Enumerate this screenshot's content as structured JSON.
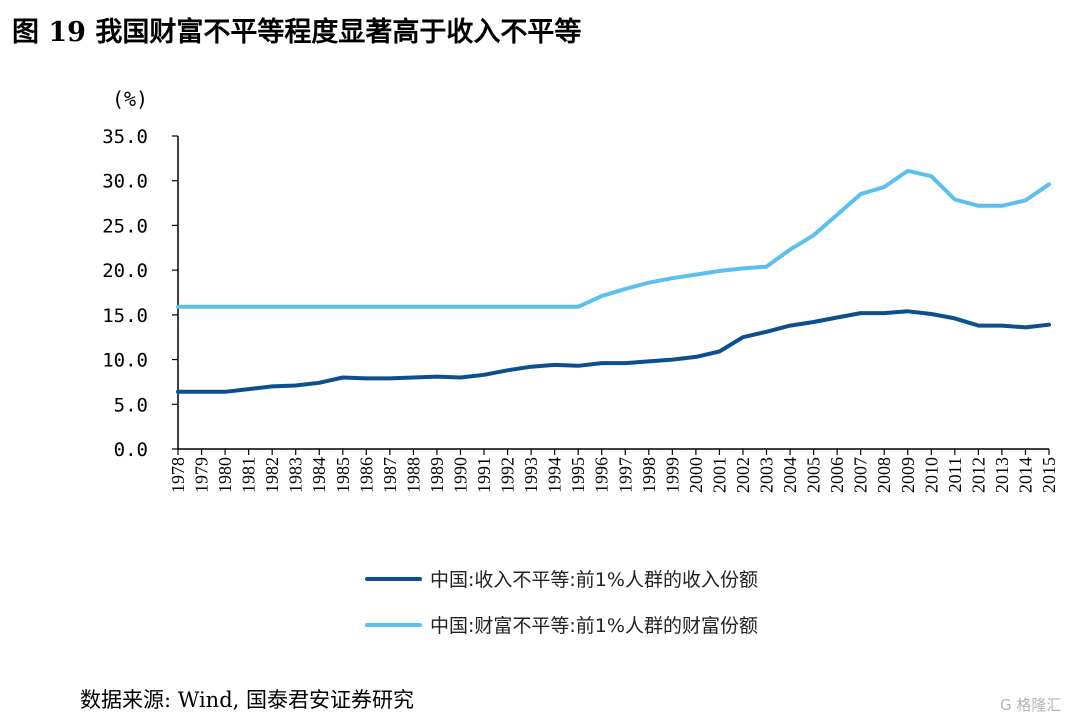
{
  "title": "图 19  我国财富不平等程度显著高于收入不平等",
  "source": "数据来源: Wind, 国泰君安证券研究",
  "watermark": "G 格隆汇",
  "colors": {
    "income": "#0b4f8f",
    "wealth": "#5bbfef",
    "axis": "#000000"
  },
  "chart_data": {
    "type": "line",
    "ylabel": "(%)",
    "ylim": [
      0,
      35
    ],
    "yticks": [
      "0.0",
      "5.0",
      "10.0",
      "15.0",
      "20.0",
      "25.0",
      "30.0",
      "35.0"
    ],
    "grid": false,
    "legend_position": "bottom",
    "categories": [
      "1978",
      "1979",
      "1980",
      "1981",
      "1982",
      "1983",
      "1984",
      "1985",
      "1986",
      "1987",
      "1988",
      "1989",
      "1990",
      "1991",
      "1992",
      "1993",
      "1994",
      "1995",
      "1996",
      "1997",
      "1998",
      "1999",
      "2000",
      "2001",
      "2002",
      "2003",
      "2004",
      "2005",
      "2006",
      "2007",
      "2008",
      "2009",
      "2010",
      "2011",
      "2012",
      "2013",
      "2014",
      "2015"
    ],
    "series": [
      {
        "name": "中国:收入不平等:前1%人群的收入份额",
        "color_key": "income",
        "values": [
          6.4,
          6.4,
          6.4,
          6.7,
          7.0,
          7.1,
          7.4,
          8.0,
          7.9,
          7.9,
          8.0,
          8.1,
          8.0,
          8.3,
          8.8,
          9.2,
          9.4,
          9.3,
          9.6,
          9.6,
          9.8,
          10.0,
          10.3,
          10.9,
          12.5,
          13.1,
          13.8,
          14.2,
          14.7,
          15.2,
          15.2,
          15.4,
          15.1,
          14.6,
          13.8,
          13.8,
          13.6,
          13.9
        ]
      },
      {
        "name": "中国:财富不平等:前1%人群的财富份额",
        "color_key": "wealth",
        "values": [
          15.9,
          15.9,
          15.9,
          15.9,
          15.9,
          15.9,
          15.9,
          15.9,
          15.9,
          15.9,
          15.9,
          15.9,
          15.9,
          15.9,
          15.9,
          15.9,
          15.9,
          15.9,
          17.1,
          17.9,
          18.6,
          19.1,
          19.5,
          19.9,
          20.2,
          20.4,
          22.3,
          23.9,
          26.2,
          28.5,
          29.3,
          31.1,
          30.5,
          27.9,
          27.2,
          27.2,
          27.8,
          29.6
        ]
      }
    ]
  }
}
